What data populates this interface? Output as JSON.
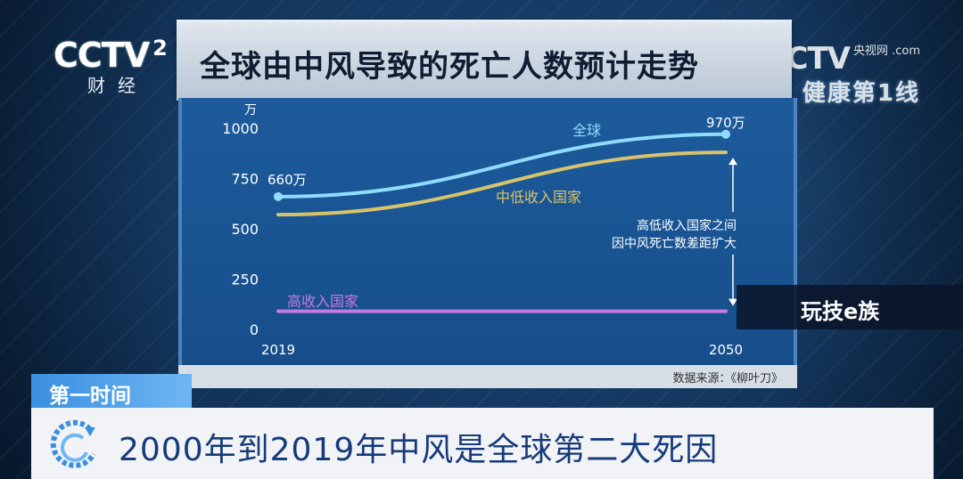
{
  "broadcast": {
    "channel_logo": "CCTV",
    "channel_number": "2",
    "channel_name": "财经",
    "right_logo": "CCTV",
    "right_site": "央视网 .com",
    "program": "健康第1线",
    "watermark": "玩技e族",
    "tag": "第一时间",
    "caption": "2000年到2019年中风是全球第二大死因"
  },
  "chart_title": "全球由中风导致的死亡人数预计走势",
  "source": "数据来源：《柳叶刀》",
  "colors": {
    "global": "#8fdcff",
    "middle_low_income": "#d8c36a",
    "high_income": "#c57be6",
    "annotation": "#ffffff",
    "panel": "#1a5593"
  },
  "chart_data": {
    "type": "line",
    "title": "全球由中风导致的死亡人数预计走势",
    "ylabel": "万",
    "xlabel": "",
    "x": [
      2019,
      2050
    ],
    "x_tick_labels": [
      "2019",
      "2050"
    ],
    "ylim": [
      0,
      1000
    ],
    "y_ticks": [
      0,
      250,
      500,
      750,
      1000
    ],
    "grid": false,
    "series": [
      {
        "name": "全球",
        "key": "global",
        "values": [
          660,
          970
        ],
        "start_label": "660万",
        "end_label": "970万"
      },
      {
        "name": "中低收入国家",
        "key": "middle_low_income",
        "values": [
          570,
          880
        ]
      },
      {
        "name": "高收入国家",
        "key": "high_income",
        "values": [
          90,
          90
        ]
      }
    ],
    "annotation": [
      "高低收入国家之间",
      "因中风死亡数差距扩大"
    ]
  }
}
